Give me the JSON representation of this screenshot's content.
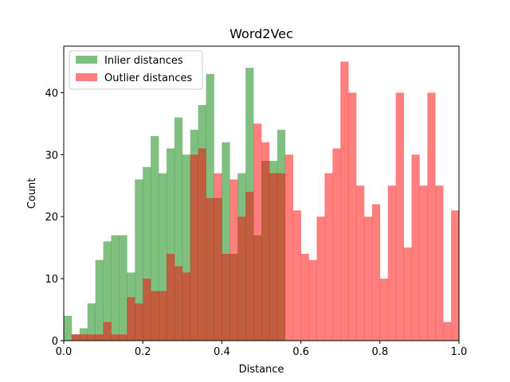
{
  "chart_data": {
    "type": "bar",
    "title": "Word2Vec",
    "xlabel": "Distance",
    "ylabel": "Count",
    "xlim": [
      0.0,
      1.0
    ],
    "ylim": [
      0,
      47.5
    ],
    "x_ticks": [
      "0.0",
      "0.2",
      "0.4",
      "0.6",
      "0.8",
      "1.0"
    ],
    "y_ticks": [
      "0",
      "10",
      "20",
      "30",
      "40"
    ],
    "grid": false,
    "legend_position": "top-left",
    "bin_width": 0.02,
    "series": [
      {
        "name": "Inlier distances",
        "color": "#008000",
        "alpha": 0.5,
        "bin_starts": [
          0.0,
          0.02,
          0.04,
          0.06,
          0.08,
          0.1,
          0.12,
          0.14,
          0.16,
          0.18,
          0.2,
          0.22,
          0.24,
          0.26,
          0.28,
          0.3,
          0.32,
          0.34,
          0.36,
          0.38,
          0.4,
          0.42,
          0.44,
          0.46,
          0.48,
          0.5,
          0.52,
          0.54,
          0.56,
          0.58
        ],
        "values": [
          4,
          1,
          2,
          6,
          13,
          16,
          17,
          17,
          11,
          26,
          28,
          33,
          27,
          31,
          36,
          30,
          34,
          38,
          43,
          23,
          32,
          14,
          27,
          44,
          17,
          29,
          29,
          34,
          0,
          0
        ]
      },
      {
        "name": "Outlier distances",
        "color": "#ff0000",
        "alpha": 0.5,
        "bin_starts": [
          0.02,
          0.04,
          0.06,
          0.08,
          0.1,
          0.12,
          0.14,
          0.16,
          0.18,
          0.2,
          0.22,
          0.24,
          0.26,
          0.28,
          0.3,
          0.32,
          0.34,
          0.36,
          0.38,
          0.4,
          0.42,
          0.44,
          0.46,
          0.48,
          0.5,
          0.52,
          0.54,
          0.56,
          0.58,
          0.6,
          0.62,
          0.64,
          0.66,
          0.68,
          0.7,
          0.72,
          0.74,
          0.76,
          0.78,
          0.8,
          0.82,
          0.84,
          0.86,
          0.88,
          0.9,
          0.92,
          0.94,
          0.96,
          0.98
        ],
        "values": [
          1,
          1,
          1,
          1,
          3,
          1,
          1,
          7,
          6,
          10,
          8,
          8,
          14,
          12,
          11,
          30,
          31,
          23,
          27,
          14,
          26,
          20,
          24,
          35,
          32,
          27,
          27,
          30,
          21,
          14,
          13,
          20,
          27,
          31,
          45,
          40,
          25,
          20,
          22,
          10,
          25,
          40,
          15,
          30,
          25,
          40,
          25,
          3,
          21
        ]
      }
    ]
  }
}
